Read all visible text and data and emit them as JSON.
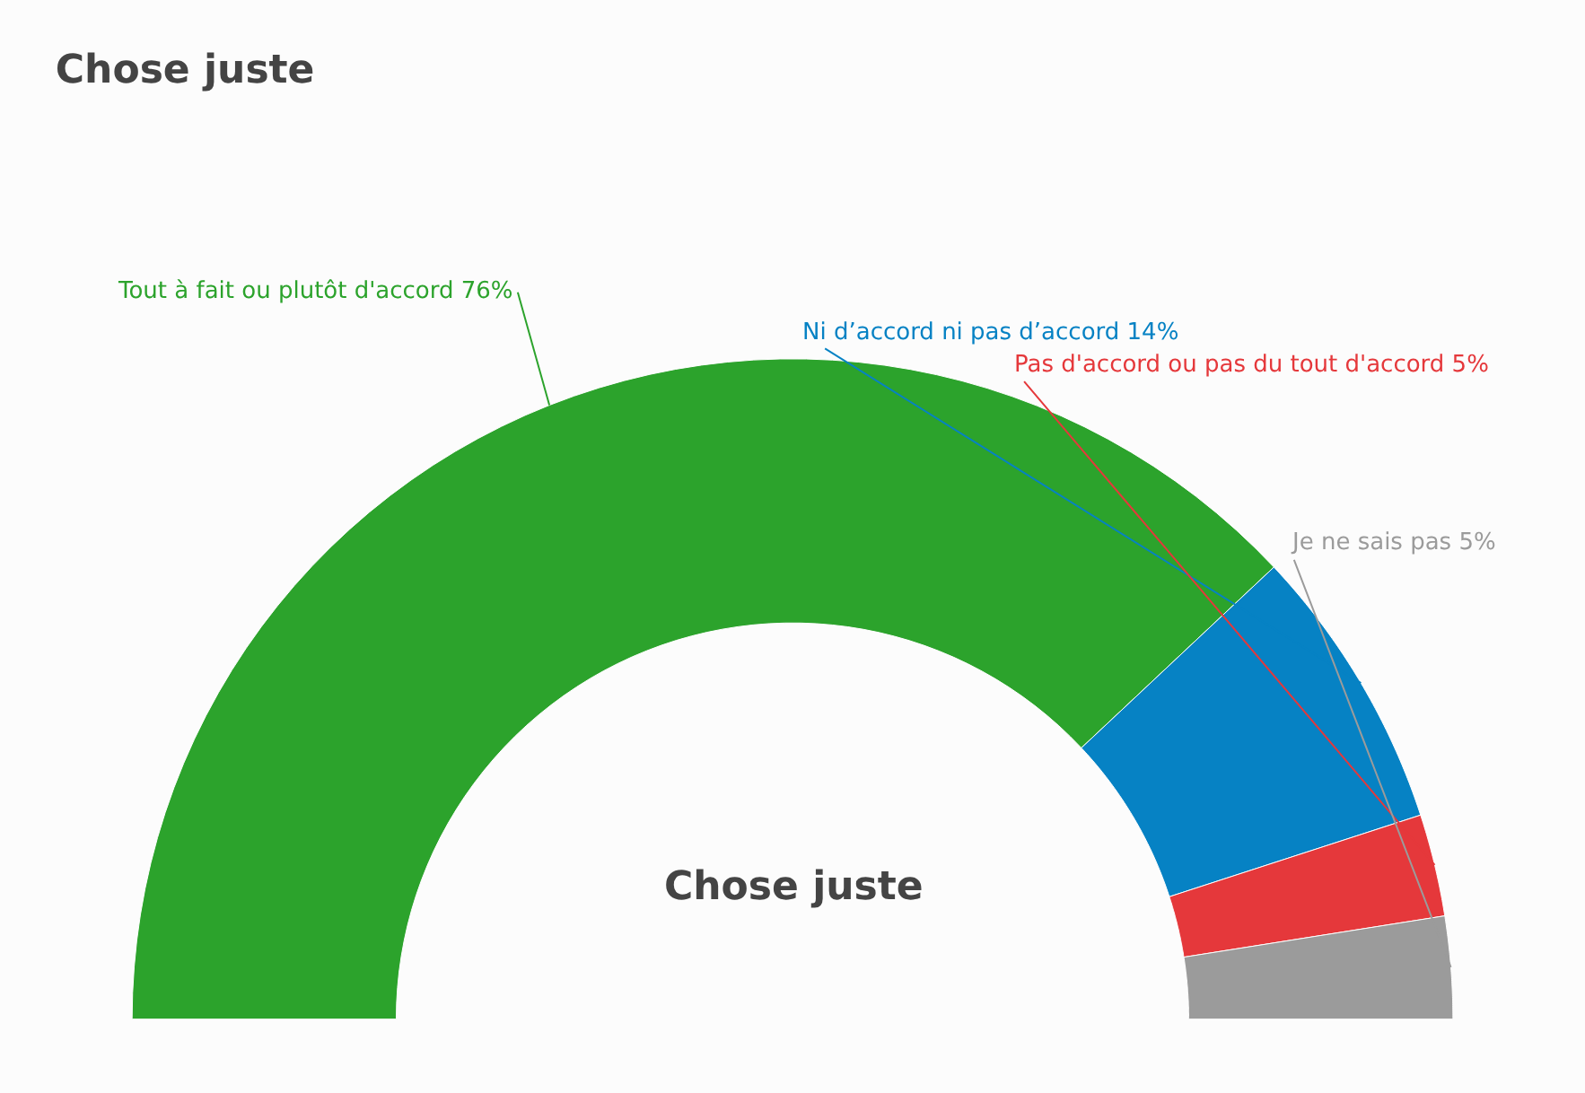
{
  "chart_data": {
    "type": "donut",
    "title": "Chose juste",
    "categories": [
      "Tout à fait ou plutôt d'accord",
      "Ni d’accord ni pas d’accord",
      "Pas d'accord ou pas du tout d'accord",
      "Je ne sais pas"
    ],
    "values": [
      76,
      14,
      5,
      5
    ],
    "value_labels": [
      "76%",
      "14%",
      "5%",
      "5%"
    ],
    "colors": [
      "#2ca32c",
      "#0682c4",
      "#e5383b",
      "#9b9b9b"
    ],
    "annotations": [
      "Chose juste"
    ],
    "legend": false
  }
}
